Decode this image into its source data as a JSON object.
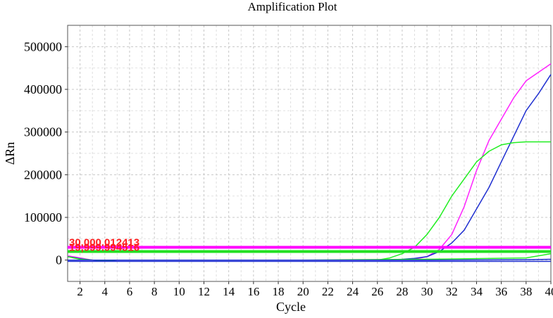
{
  "chart_data": {
    "type": "line",
    "title": "Amplification Plot",
    "xlabel": "Cycle",
    "ylabel": "ΔRn",
    "xlim": [
      1,
      40
    ],
    "ylim": [
      -50000,
      550000
    ],
    "x_ticks": [
      2,
      4,
      6,
      8,
      10,
      12,
      14,
      16,
      18,
      20,
      22,
      24,
      26,
      28,
      30,
      32,
      34,
      36,
      38,
      40
    ],
    "y_ticks": [
      0,
      100000,
      200000,
      300000,
      400000,
      500000
    ],
    "grid": true,
    "thresholds": [
      {
        "label": "30,000.012413",
        "value": 30000,
        "color": "#ff00ff"
      },
      {
        "label": "19,999.994516",
        "value": 20000,
        "color": "#22e022"
      }
    ],
    "series": [
      {
        "color": "#ff22ff",
        "x": [
          1,
          2,
          3,
          4,
          5,
          10,
          20,
          26,
          28,
          29,
          30,
          31,
          32,
          33,
          34,
          35,
          36,
          37,
          38,
          39,
          40
        ],
        "y": [
          10000,
          5000,
          0,
          -2000,
          0,
          0,
          0,
          0,
          0,
          2000,
          8000,
          25000,
          60000,
          125000,
          210000,
          280000,
          330000,
          380000,
          420000,
          440000,
          460000
        ]
      },
      {
        "color": "#1f2fd0",
        "x": [
          1,
          2,
          3,
          4,
          5,
          10,
          20,
          26,
          28,
          29,
          30,
          31,
          32,
          33,
          34,
          35,
          36,
          37,
          38,
          39,
          40
        ],
        "y": [
          8000,
          3000,
          0,
          -2000,
          0,
          0,
          0,
          0,
          2000,
          4000,
          8000,
          20000,
          40000,
          70000,
          120000,
          170000,
          230000,
          290000,
          350000,
          390000,
          435000
        ]
      },
      {
        "color": "#22ee22",
        "x": [
          1,
          2,
          3,
          4,
          5,
          10,
          20,
          26,
          27,
          28,
          29,
          30,
          31,
          32,
          33,
          34,
          35,
          36,
          37,
          38,
          39,
          40
        ],
        "y": [
          8000,
          2000,
          0,
          -2000,
          0,
          0,
          0,
          0,
          5000,
          15000,
          30000,
          60000,
          100000,
          150000,
          190000,
          230000,
          255000,
          270000,
          275000,
          277000,
          277000,
          277000
        ]
      },
      {
        "color": "#22ee22",
        "x": [
          1,
          5,
          10,
          20,
          30,
          38,
          39,
          40
        ],
        "y": [
          0,
          0,
          0,
          0,
          2000,
          5000,
          10000,
          15000
        ]
      },
      {
        "color": "#1f2fd0",
        "x": [
          1,
          5,
          10,
          20,
          30,
          38,
          40
        ],
        "y": [
          -3000,
          -3000,
          -3000,
          -3000,
          -3000,
          -3000,
          -3000
        ]
      },
      {
        "color": "#1f2fd0",
        "x": [
          1,
          5,
          10,
          20,
          30,
          38,
          40
        ],
        "y": [
          0,
          0,
          0,
          0,
          0,
          1000,
          2000
        ]
      }
    ]
  }
}
